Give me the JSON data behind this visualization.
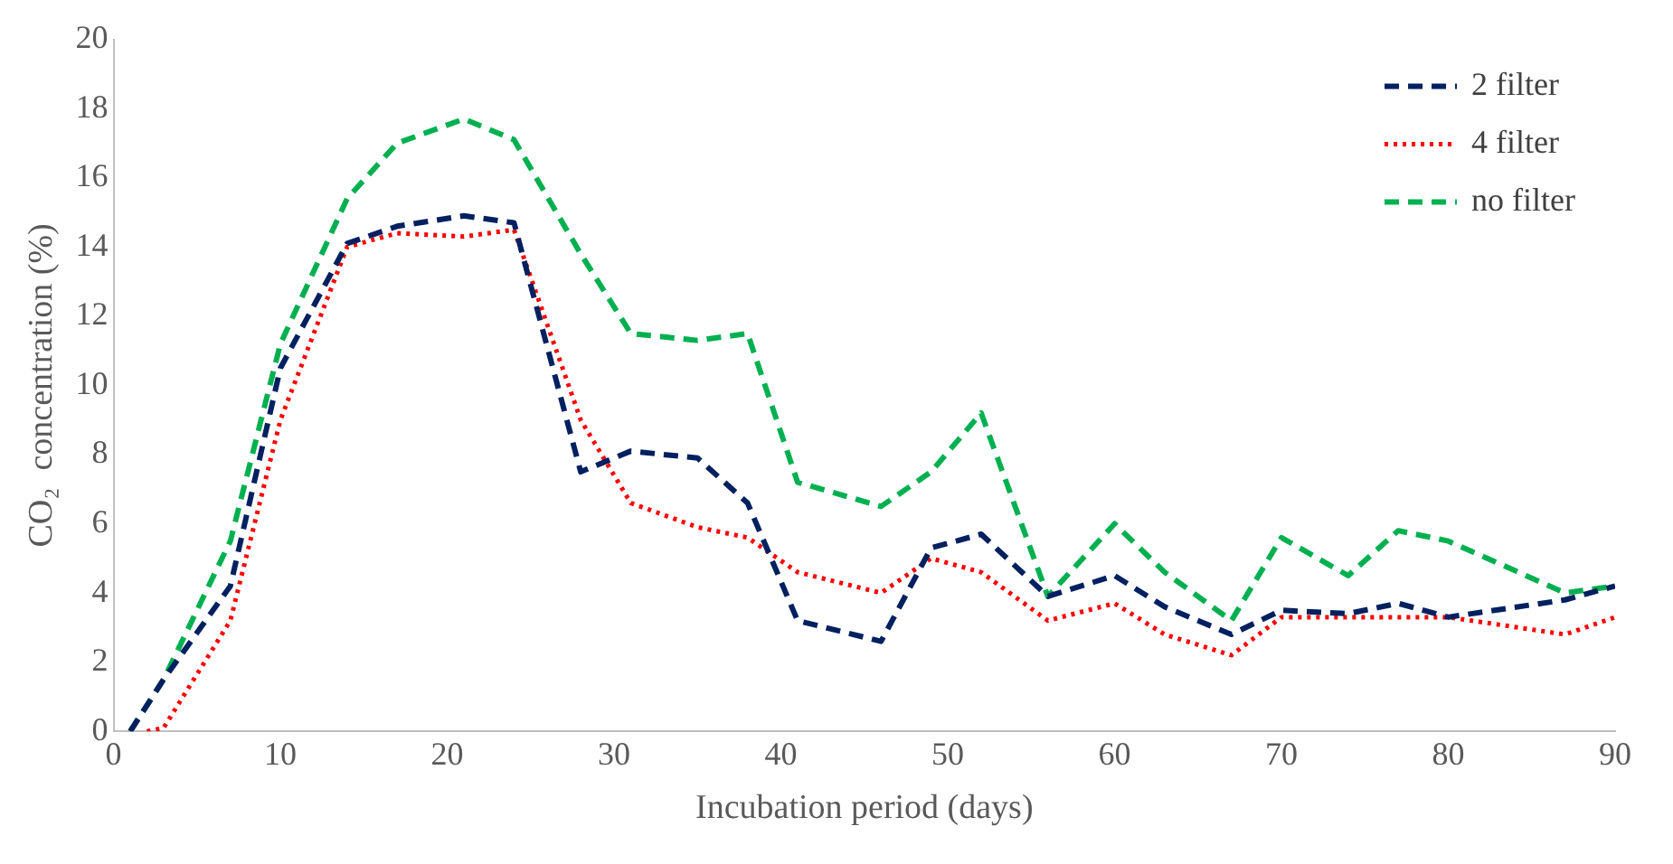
{
  "chart_data": {
    "type": "line",
    "xlabel": "Incubation period (days)",
    "ylabel": "CO₂  concentration (%)",
    "xlim": [
      0,
      90
    ],
    "xticks": [
      0,
      10,
      20,
      30,
      40,
      50,
      60,
      70,
      80,
      90
    ],
    "ylim": [
      0,
      20
    ],
    "yticks": [
      0,
      2,
      4,
      6,
      8,
      10,
      12,
      14,
      16,
      18,
      20
    ],
    "grid": false,
    "legend": "top right",
    "marker": "none",
    "series": [
      {
        "name": "2 filter",
        "color": "#002060",
        "line_style": "dashed",
        "x": [
          1,
          3,
          7,
          10,
          14,
          17,
          21,
          24,
          28,
          31,
          35,
          38,
          41,
          46,
          49,
          52,
          56,
          60,
          63,
          67,
          70,
          74,
          77,
          80,
          87,
          90
        ],
        "values": [
          0,
          1.5,
          4.2,
          10.5,
          14.1,
          14.6,
          14.9,
          14.7,
          7.5,
          8.1,
          7.9,
          6.6,
          3.2,
          2.6,
          5.3,
          5.7,
          3.9,
          4.5,
          3.6,
          2.8,
          3.5,
          3.4,
          3.7,
          3.3,
          3.8,
          4.2
        ]
      },
      {
        "name": "4 filter",
        "color": "#ff0000",
        "line_style": "dotted",
        "x": [
          2,
          3,
          7,
          10,
          14,
          17,
          21,
          24,
          28,
          31,
          35,
          38,
          41,
          46,
          49,
          52,
          56,
          60,
          63,
          67,
          70,
          74,
          80,
          87,
          90
        ],
        "values": [
          0,
          0.1,
          3.2,
          9,
          14,
          14.4,
          14.3,
          14.5,
          9,
          6.6,
          5.9,
          5.6,
          4.6,
          4,
          5,
          4.6,
          3.2,
          3.7,
          2.8,
          2.2,
          3.3,
          3.3,
          3.3,
          2.8,
          3.3
        ]
      },
      {
        "name": "no filter",
        "color": "#00b050",
        "line_style": "dashed",
        "x": [
          1,
          3,
          7,
          10,
          14,
          17,
          21,
          24,
          28,
          31,
          35,
          38,
          41,
          46,
          49,
          52,
          56,
          60,
          63,
          67,
          70,
          74,
          77,
          80,
          87,
          90
        ],
        "values": [
          0,
          1.5,
          5.5,
          11.2,
          15.4,
          17,
          17.7,
          17.1,
          13.8,
          11.5,
          11.3,
          11.5,
          7.2,
          6.5,
          7.5,
          9.2,
          3.9,
          6,
          4.6,
          3.2,
          5.6,
          4.5,
          5.8,
          5.5,
          4,
          4.2
        ]
      }
    ]
  }
}
